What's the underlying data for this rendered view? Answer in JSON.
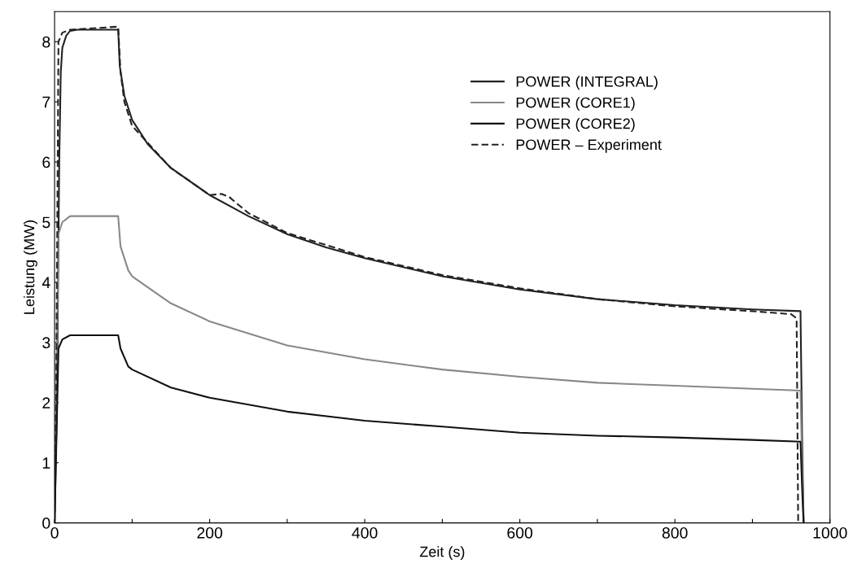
{
  "chart_data": {
    "type": "line",
    "xlabel": "Zeit (s)",
    "ylabel": "Leistung (MW)",
    "xlim": [
      0,
      1000
    ],
    "ylim": [
      0,
      8.5
    ],
    "xticks": [
      0,
      {
        "value": 100,
        "label": null
      },
      200,
      {
        "value": 300,
        "label": null
      },
      400,
      {
        "value": 500,
        "label": null
      },
      600,
      {
        "value": 700,
        "label": null
      },
      800,
      {
        "value": 900,
        "label": null
      },
      1000
    ],
    "yticks": [
      0,
      1,
      2,
      3,
      4,
      5,
      6,
      7,
      8
    ],
    "grid": false,
    "legend": "top right",
    "marker": "none",
    "series": [
      {
        "name": "POWER (INTEGRAL)",
        "color": "#222222",
        "line_style": "solid",
        "x": [
          0,
          3,
          6,
          8,
          10,
          15,
          20,
          30,
          82,
          84,
          90,
          100,
          120,
          150,
          200,
          250,
          300,
          350,
          400,
          500,
          600,
          700,
          800,
          900,
          962,
          964,
          966
        ],
        "values": [
          0,
          2,
          6,
          7.5,
          7.9,
          8.1,
          8.18,
          8.2,
          8.2,
          7.6,
          7.1,
          6.7,
          6.3,
          5.9,
          5.45,
          5.1,
          4.8,
          4.58,
          4.4,
          4.1,
          3.88,
          3.72,
          3.62,
          3.55,
          3.52,
          1.5,
          0
        ]
      },
      {
        "name": "POWER (CORE1)",
        "color": "#888888",
        "line_style": "solid",
        "x": [
          0,
          5,
          10,
          20,
          82,
          85,
          95,
          100,
          150,
          200,
          300,
          400,
          500,
          600,
          700,
          800,
          900,
          962,
          964,
          966
        ],
        "values": [
          0,
          4.8,
          5.0,
          5.1,
          5.1,
          4.6,
          4.2,
          4.1,
          3.65,
          3.35,
          2.95,
          2.72,
          2.55,
          2.43,
          2.33,
          2.28,
          2.23,
          2.2,
          1.0,
          0
        ]
      },
      {
        "name": "POWER (CORE2)",
        "color": "#111111",
        "line_style": "solid",
        "x": [
          0,
          5,
          10,
          20,
          82,
          85,
          95,
          100,
          150,
          200,
          300,
          400,
          500,
          600,
          700,
          800,
          900,
          962,
          964,
          966
        ],
        "values": [
          0,
          2.9,
          3.05,
          3.12,
          3.12,
          2.9,
          2.6,
          2.55,
          2.25,
          2.08,
          1.85,
          1.7,
          1.6,
          1.5,
          1.45,
          1.42,
          1.38,
          1.35,
          0.6,
          0
        ]
      },
      {
        "name": "POWER – Experiment",
        "color": "#222222",
        "line_style": "dashed",
        "x": [
          0,
          2,
          4,
          5,
          10,
          20,
          82,
          85,
          90,
          100,
          150,
          200,
          215,
          225,
          250,
          300,
          400,
          500,
          600,
          700,
          800,
          900,
          950,
          957,
          959
        ],
        "values": [
          0,
          2,
          6,
          8.0,
          8.15,
          8.2,
          8.25,
          7.5,
          7.0,
          6.6,
          5.9,
          5.45,
          5.47,
          5.42,
          5.15,
          4.82,
          4.42,
          4.12,
          3.9,
          3.72,
          3.6,
          3.52,
          3.47,
          3.4,
          0
        ]
      }
    ]
  }
}
